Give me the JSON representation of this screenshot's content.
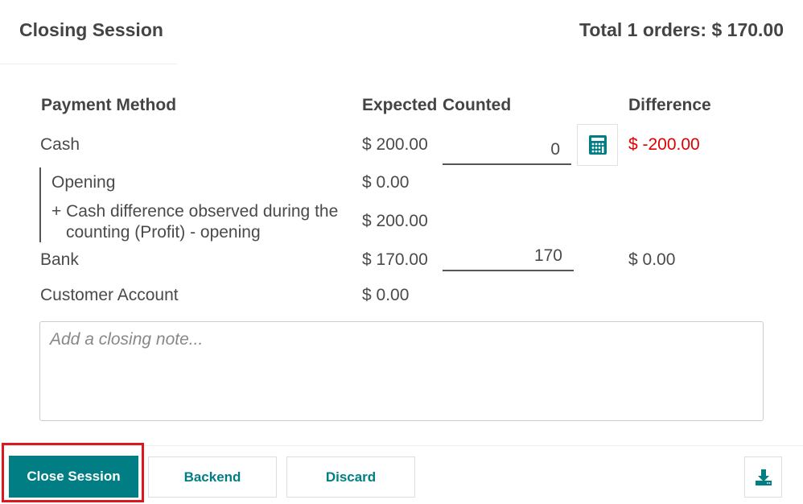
{
  "header": {
    "title": "Closing Session",
    "total": "Total 1 orders: $ 170.00"
  },
  "table": {
    "headers": [
      "Payment Method",
      "Expected",
      "Counted",
      "Difference"
    ],
    "cash": {
      "label": "Cash",
      "expected": "$ 200.00",
      "counted": "0",
      "difference": "$ -200.00",
      "difference_color": "#e00000",
      "calculator_icon": "calculator-icon"
    },
    "cash_details": [
      {
        "label": "Opening",
        "amount": "$ 0.00"
      },
      {
        "label": "+ Cash difference observed during the counting (Profit) - opening",
        "amount": "$ 200.00"
      }
    ],
    "bank": {
      "label": "Bank",
      "expected": "$ 170.00",
      "counted": "170",
      "difference": "$ 0.00"
    },
    "customer_account": {
      "label": "Customer Account",
      "expected": "$ 0.00"
    }
  },
  "note": {
    "placeholder": "Add a closing note..."
  },
  "footer": {
    "close_session": "Close Session",
    "backend": "Backend",
    "discard": "Discard",
    "download_icon": "download-icon"
  },
  "colors": {
    "accent": "#017e84",
    "highlight": "#d9181f"
  }
}
